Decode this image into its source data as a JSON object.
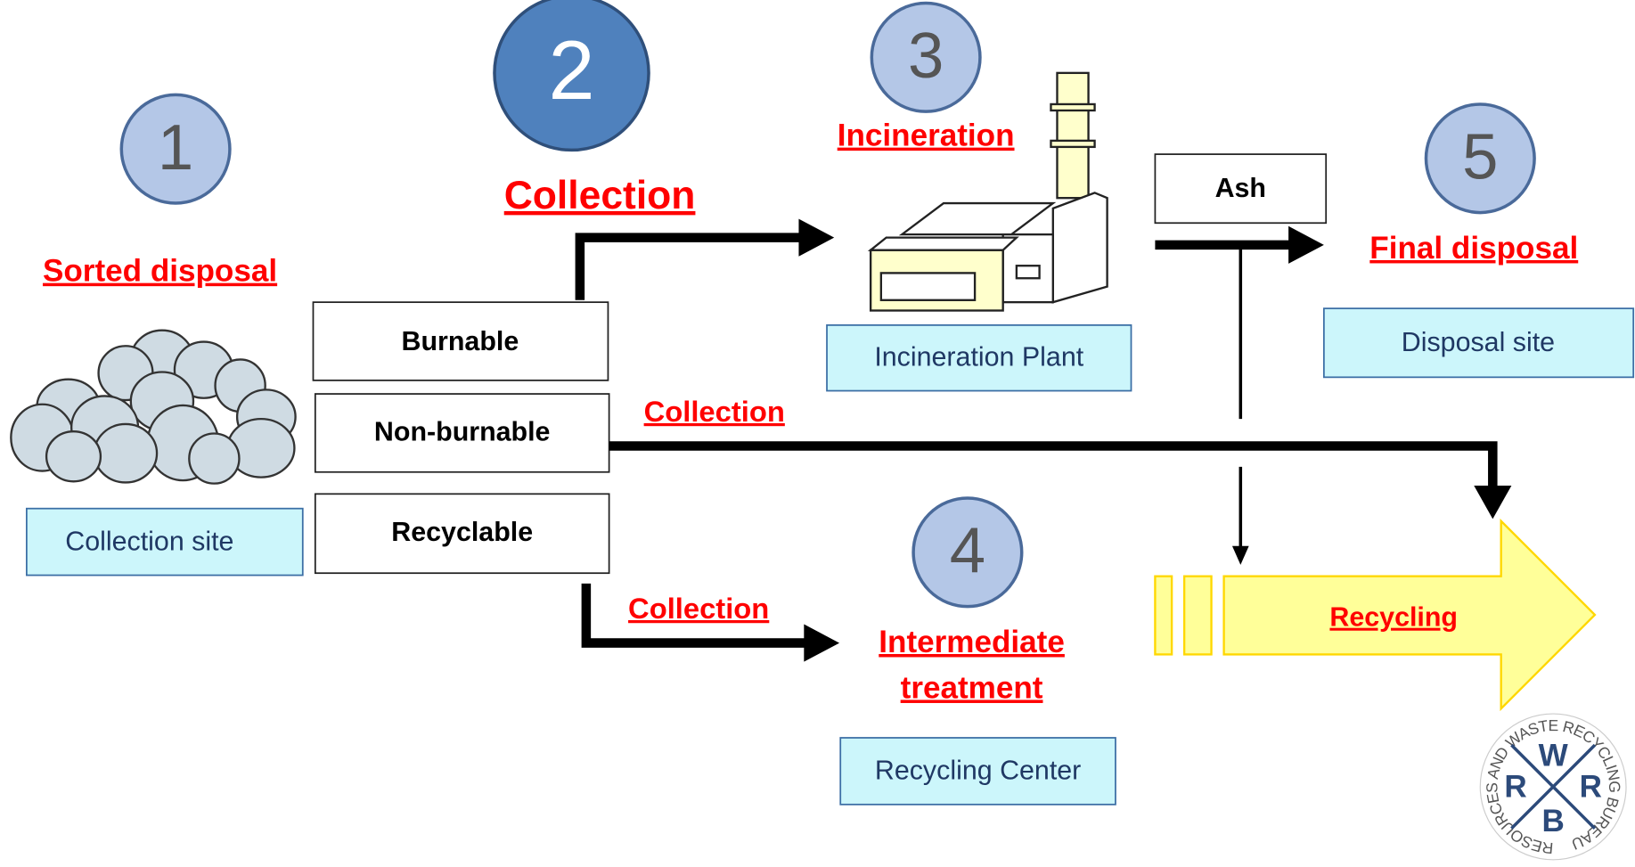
{
  "steps": [
    {
      "number": "1",
      "label": "Sorted disposal",
      "place": "Collection site"
    },
    {
      "number": "2",
      "label": "Collection"
    },
    {
      "number": "3",
      "label": "Incineration",
      "place": "Incineration Plant"
    },
    {
      "number": "4",
      "label": [
        "Intermediate",
        "treatment"
      ],
      "place": "Recycling Center"
    },
    {
      "number": "5",
      "label": "Final disposal",
      "place": "Disposal site"
    }
  ],
  "waste_types": [
    "Burnable",
    "Non-burnable",
    "Recyclable"
  ],
  "routes": {
    "non_burnable": "Collection",
    "recyclable": "Collection"
  },
  "ash": "Ash",
  "recycling": "Recycling",
  "logo": {
    "ring": "RESOURCES AND WASTE RECYCLING BUREAU",
    "letters": [
      "W",
      "R",
      "R",
      "B"
    ]
  }
}
